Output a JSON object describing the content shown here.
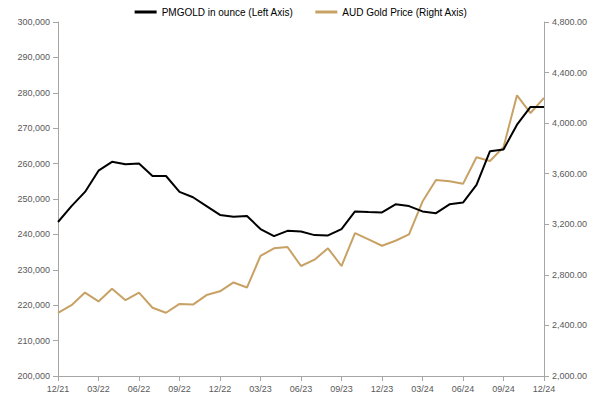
{
  "chart_data": {
    "type": "line",
    "categories": [
      "12/21",
      null,
      null,
      "03/22",
      null,
      null,
      "06/22",
      null,
      null,
      "09/22",
      null,
      null,
      "12/22",
      null,
      null,
      "03/23",
      null,
      null,
      "06/23",
      null,
      null,
      "09/23",
      null,
      null,
      "12/23",
      null,
      null,
      "03/24",
      null,
      null,
      "06/24",
      null,
      null,
      "09/24",
      null,
      null,
      "12/24"
    ],
    "series": [
      {
        "name": "PMGOLD in ounce (Left Axis)",
        "color": "#000000",
        "axis": "y",
        "values": [
          243500,
          248000,
          252000,
          258000,
          260500,
          259800,
          260000,
          256500,
          256500,
          252000,
          250500,
          248000,
          245500,
          245000,
          245200,
          241500,
          239500,
          241000,
          240800,
          239800,
          239700,
          241500,
          246500,
          246300,
          246200,
          248500,
          248000,
          246500,
          246000,
          248500,
          249000,
          254000,
          263500,
          264000,
          271000,
          276000,
          276000
        ]
      },
      {
        "name": "AUD Gold Price (Right Axis)",
        "color": "#c8a165",
        "axis": "y2",
        "values": [
          2500,
          2560,
          2660,
          2590,
          2690,
          2600,
          2660,
          2540,
          2500,
          2570,
          2565,
          2640,
          2670,
          2740,
          2700,
          2950,
          3010,
          3020,
          2870,
          2920,
          3010,
          2870,
          3130,
          3080,
          3030,
          3070,
          3120,
          3380,
          3550,
          3540,
          3520,
          3730,
          3700,
          3810,
          4220,
          4080,
          4200
        ]
      }
    ],
    "ylim": [
      200000,
      300000
    ],
    "yticks": [
      {
        "value": 200000,
        "label": "200,000"
      },
      {
        "value": 210000,
        "label": "210,000"
      },
      {
        "value": 220000,
        "label": "220,000"
      },
      {
        "value": 230000,
        "label": "230,000"
      },
      {
        "value": 240000,
        "label": "240,000"
      },
      {
        "value": 250000,
        "label": "250,000"
      },
      {
        "value": 260000,
        "label": "260,000"
      },
      {
        "value": 270000,
        "label": "270,000"
      },
      {
        "value": 280000,
        "label": "280,000"
      },
      {
        "value": 290000,
        "label": "290,000"
      },
      {
        "value": 300000,
        "label": "300,000"
      }
    ],
    "y2lim": [
      2000,
      4800
    ],
    "y2ticks": [
      {
        "value": 2000,
        "label": "2,000.00"
      },
      {
        "value": 2400,
        "label": "2,400.00"
      },
      {
        "value": 2800,
        "label": "2,800.00"
      },
      {
        "value": 3200,
        "label": "3,200.00"
      },
      {
        "value": 3600,
        "label": "3,600.00"
      },
      {
        "value": 4000,
        "label": "4,000.00"
      },
      {
        "value": 4400,
        "label": "4,400.00"
      },
      {
        "value": 4800,
        "label": "4,800.00"
      }
    ],
    "grid": false,
    "legend": "top"
  }
}
